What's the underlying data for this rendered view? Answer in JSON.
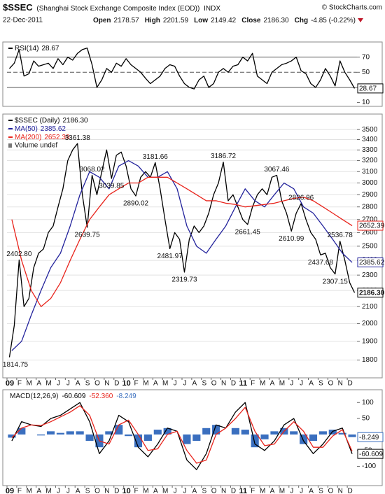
{
  "header": {
    "symbol": "$SSEC",
    "name": "(Shanghai Stock Exchange Composite Index (EOD))",
    "exchange": "INDX",
    "copyright": "© StockCharts.com",
    "date": "22-Dec-2011",
    "quote": [
      [
        "Open",
        "2178.57"
      ],
      [
        "High",
        "2201.59"
      ],
      [
        "Low",
        "2149.42"
      ],
      [
        "Close",
        "2186.30"
      ],
      [
        "Chg",
        "-4.85 (-0.22%)"
      ]
    ]
  },
  "chart_data": [
    {
      "type": "line",
      "ylim": [
        5,
        90
      ],
      "yticks": [
        70,
        50,
        30,
        10
      ],
      "reference_lines": [
        70,
        50,
        30
      ],
      "reference_dashed": [
        false,
        true,
        false
      ],
      "series": [
        {
          "name": "RSI(14)",
          "color": "#000000",
          "box": true,
          "values": [
            55,
            62,
            80,
            45,
            48,
            65,
            58,
            60,
            62,
            55,
            68,
            60,
            70,
            66,
            75,
            80,
            82,
            60,
            30,
            40,
            55,
            50,
            62,
            58,
            68,
            60,
            55,
            50,
            42,
            35,
            40,
            45,
            55,
            60,
            58,
            45,
            35,
            30,
            28,
            40,
            45,
            30,
            35,
            50,
            55,
            50,
            58,
            60,
            70,
            65,
            75,
            45,
            40,
            35,
            50,
            55,
            60,
            62,
            65,
            70,
            52,
            48,
            35,
            30,
            40,
            55,
            45,
            32,
            65,
            50,
            40,
            28.67
          ]
        }
      ]
    },
    {
      "type": "line",
      "log": true,
      "grid": true,
      "ylim": [
        1710,
        3660
      ],
      "yticks": [
        1800,
        1900,
        2000,
        2100,
        2200,
        2300,
        2400,
        2500,
        2600,
        2700,
        2800,
        2900,
        3000,
        3100,
        3200,
        3300,
        3400,
        3500
      ],
      "x_labels": [
        "09",
        "F",
        "M",
        "A",
        "M",
        "J",
        "J",
        "A",
        "S",
        "O",
        "N",
        "D",
        "10",
        "F",
        "M",
        "A",
        "M",
        "J",
        "J",
        "A",
        "S",
        "O",
        "N",
        "D",
        "11",
        "F",
        "M",
        "A",
        "M",
        "J",
        "J",
        "A",
        "S",
        "O",
        "N",
        "D"
      ],
      "volume_label": "Volume undef",
      "series": [
        {
          "name": "$SSEC (Daily)",
          "color": "#000000",
          "box": true,
          "values": [
            1814.75,
            1990,
            2402.8,
            2100,
            2150,
            2350,
            2450,
            2480,
            2600,
            2650,
            2800,
            2950,
            3200,
            3300,
            3361.38,
            2900,
            2639.75,
            3068.02,
            2900,
            3100,
            3300,
            3039.85,
            3250,
            3280,
            3150,
            2950,
            2890.02,
            3050,
            3100,
            3050,
            3181.66,
            2950,
            2700,
            2481.97,
            2600,
            2550,
            2319.73,
            2550,
            2650,
            2600,
            2650,
            2750,
            2900,
            3000,
            3186.72,
            2850,
            2900,
            2800,
            2700,
            2661.45,
            2800,
            2900,
            2950,
            2900,
            3050,
            3067.46,
            2850,
            2750,
            2610.99,
            2750,
            2826.96,
            2700,
            2600,
            2550,
            2437.68,
            2450,
            2350,
            2307.15,
            2536.78,
            2400,
            2250,
            2186.3
          ],
          "value_labels": [
            null,
            null,
            null,
            null,
            null,
            null,
            null,
            null,
            null,
            null,
            null,
            null,
            null,
            null,
            null,
            null,
            null,
            null,
            null,
            null,
            null,
            null,
            null,
            null,
            null,
            null,
            null,
            null,
            null,
            null,
            null,
            null,
            null,
            null,
            null,
            null,
            null,
            null,
            null,
            null,
            null,
            null,
            null,
            null,
            null,
            null,
            null,
            null,
            null,
            null,
            null,
            null,
            null,
            null,
            null,
            null,
            null,
            null,
            null,
            null,
            null,
            null,
            null,
            null,
            null,
            null,
            null,
            null,
            null,
            null,
            null,
            "2186.30"
          ]
        },
        {
          "name": "MA(50)",
          "color": "#23239c",
          "box": true,
          "values": [
            1850,
            1900,
            2050,
            2200,
            2350,
            2450,
            2650,
            2900,
            3100,
            3050,
            2950,
            3150,
            3200,
            3150,
            3050,
            3050,
            3100,
            2950,
            2650,
            2500,
            2450,
            2550,
            2650,
            2800,
            2950,
            2850,
            2800,
            2900,
            3000,
            2950,
            2800,
            2750,
            2650,
            2550,
            2450,
            2385.62
          ]
        },
        {
          "name": "MA(200)",
          "color": "#e8241c",
          "box": true,
          "values": [
            2700,
            2400,
            2200,
            2100,
            2150,
            2250,
            2400,
            2550,
            2700,
            2800,
            2900,
            2950,
            3000,
            3000,
            3050,
            3050,
            3050,
            3000,
            2950,
            2900,
            2850,
            2850,
            2830,
            2820,
            2800,
            2810,
            2820,
            2830,
            2850,
            2870,
            2880,
            2850,
            2800,
            2750,
            2700,
            2652.39
          ]
        }
      ],
      "annotations": [
        1814.75,
        {
          "value": 2402.8,
          "label": "2402.80"
        },
        3361.38,
        2639.75,
        3068.02,
        3039.85,
        2890.02,
        3181.66,
        2481.97,
        2319.73,
        3186.72,
        2661.45,
        3067.46,
        2610.99,
        2826.96,
        2437.68,
        2307.15,
        2536.78
      ]
    },
    {
      "type": "combo",
      "title": "MACD(12,26,9)",
      "ylim": [
        -160,
        140
      ],
      "yticks": [
        100,
        50,
        -50,
        -100
      ],
      "series": [
        {
          "color": "#000000",
          "box": true,
          "values": [
            -20,
            40,
            30,
            25,
            50,
            60,
            80,
            100,
            40,
            -60,
            -20,
            60,
            40,
            -40,
            -70,
            -30,
            20,
            10,
            -80,
            -110,
            -60,
            30,
            20,
            70,
            100,
            -30,
            -50,
            -20,
            30,
            50,
            -20,
            -60,
            -30,
            10,
            20,
            -60.609
          ]
        },
        {
          "color": "#e8241c",
          "values": [
            -10,
            20,
            30,
            28,
            40,
            55,
            70,
            90,
            60,
            -20,
            -30,
            30,
            45,
            0,
            -50,
            -45,
            0,
            10,
            -50,
            -90,
            -80,
            0,
            20,
            50,
            85,
            10,
            -35,
            -30,
            10,
            40,
            10,
            -40,
            -40,
            -5,
            15,
            -52.36
          ],
          "value_labels": [
            null,
            null,
            null,
            null,
            null,
            null,
            null,
            null,
            null,
            null,
            null,
            null,
            null,
            null,
            null,
            null,
            null,
            null,
            null,
            null,
            null,
            null,
            null,
            null,
            null,
            null,
            null,
            null,
            null,
            null,
            null,
            null,
            null,
            null,
            null,
            "-52.360"
          ]
        },
        {
          "color": "#3a6fbf",
          "mark": "bar",
          "box": true,
          "values": [
            -10,
            20,
            0,
            -3,
            10,
            5,
            10,
            10,
            -20,
            -40,
            10,
            30,
            -5,
            -40,
            -20,
            15,
            20,
            0,
            -30,
            -20,
            20,
            30,
            0,
            20,
            15,
            -40,
            -15,
            10,
            20,
            10,
            -30,
            -20,
            10,
            15,
            5,
            -8.249
          ]
        }
      ]
    }
  ]
}
